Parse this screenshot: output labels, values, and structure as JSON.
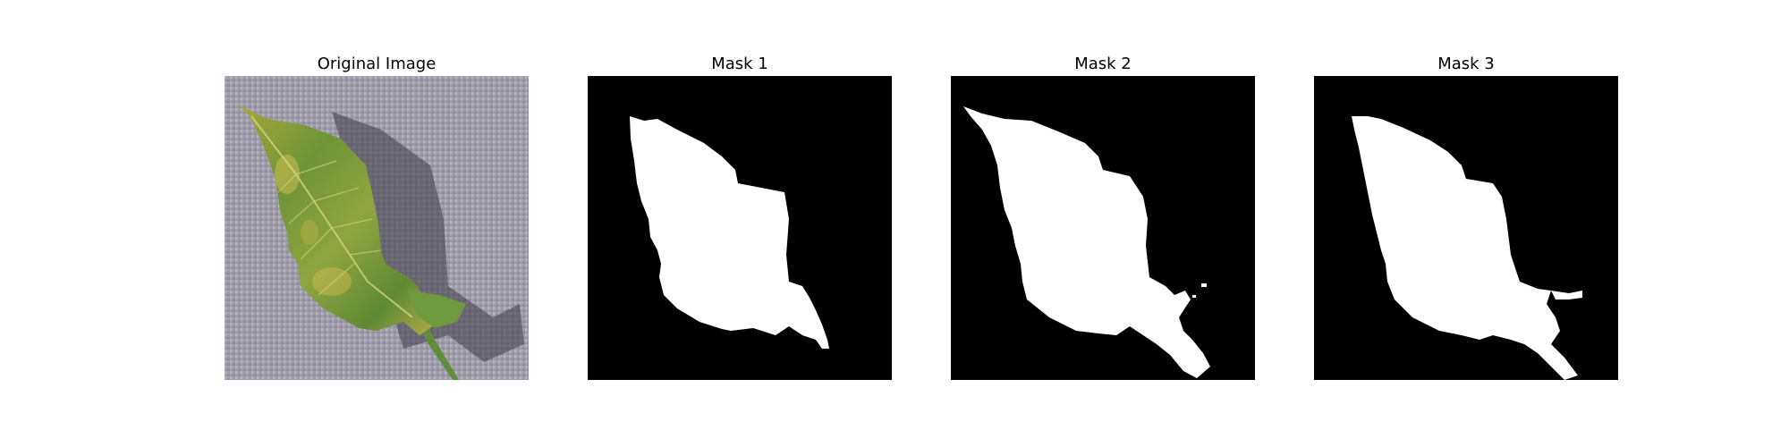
{
  "panels": [
    {
      "title": "Original Image"
    },
    {
      "title": "Mask 1"
    },
    {
      "title": "Mask 2"
    },
    {
      "title": "Mask 3"
    }
  ],
  "colors": {
    "background": "#ffffff",
    "mask_bg": "#000000",
    "mask_fg": "#ffffff",
    "surface": "#9e9aa8",
    "leaf_green": "#7f9b3c",
    "leaf_yellow": "#c6b74a",
    "leaf_dark": "#3f6a2c"
  }
}
